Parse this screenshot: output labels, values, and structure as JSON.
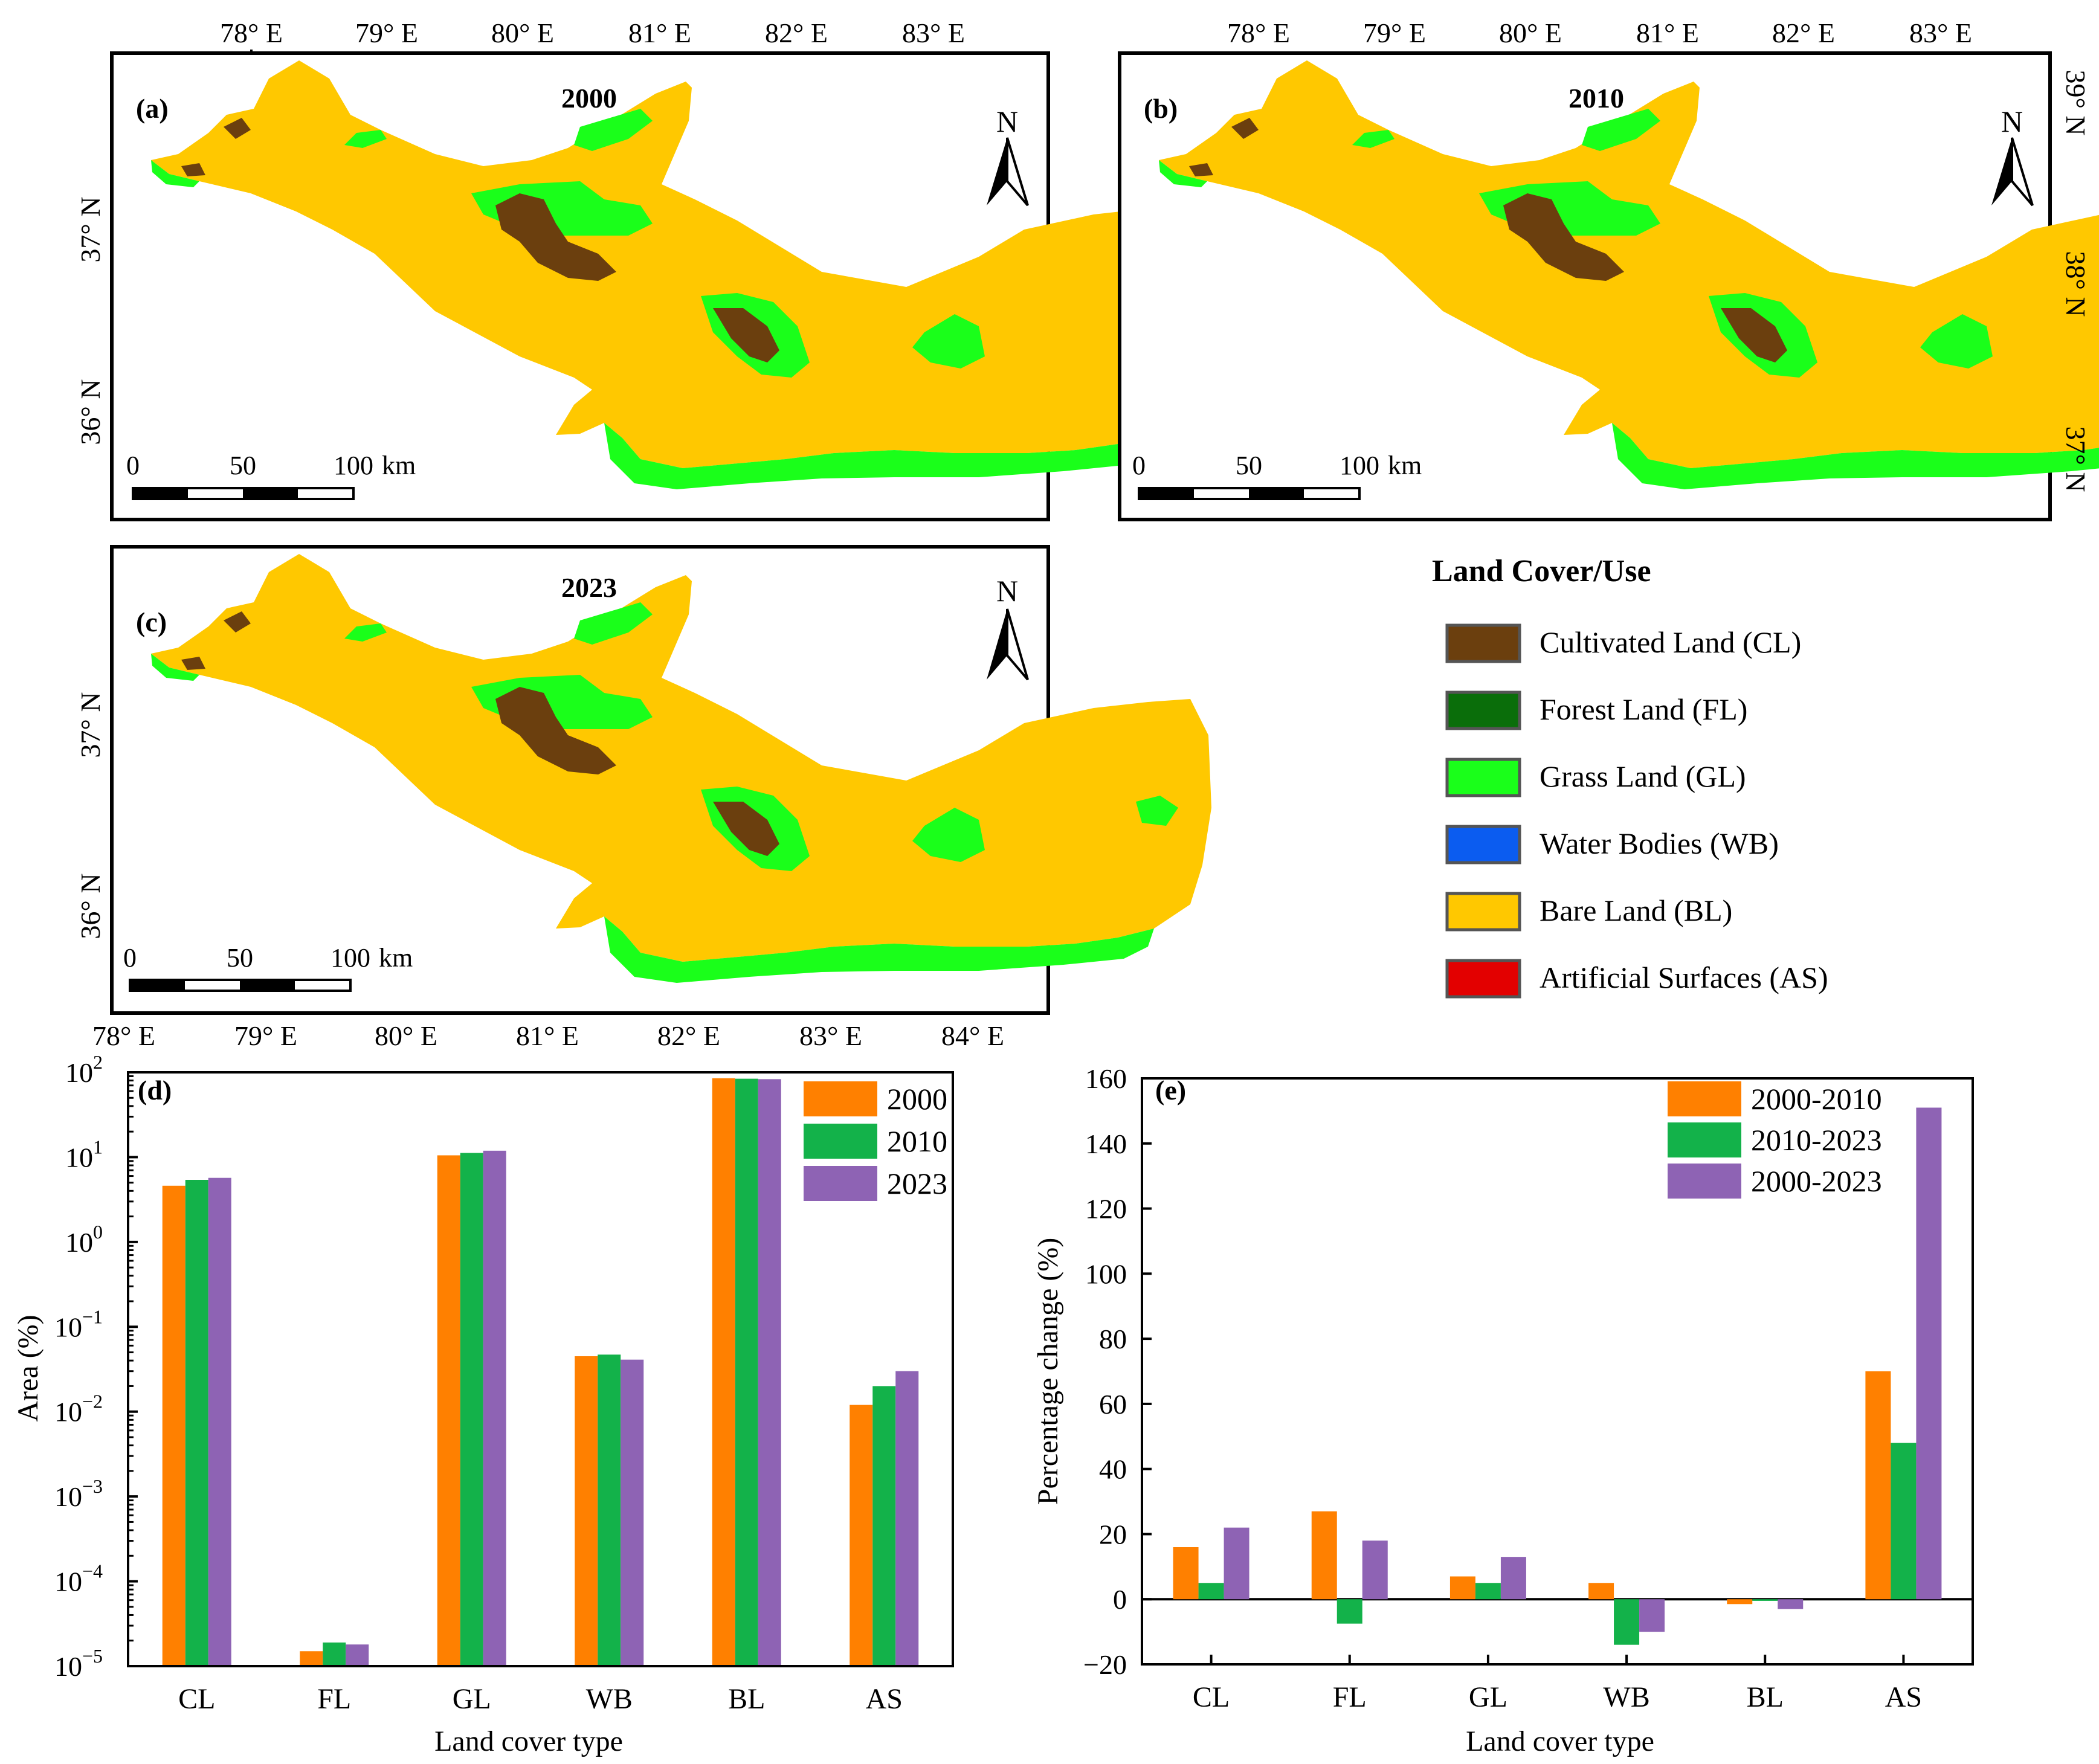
{
  "maps": [
    {
      "id": "a",
      "panel_label": "(a)",
      "year": "2000",
      "top_ticks": [
        "78° E",
        "79° E",
        "80° E",
        "81° E",
        "82° E",
        "83° E"
      ],
      "left_ticks": [
        "37° N",
        "36° N"
      ],
      "right_ticks": [],
      "bottom_ticks": [],
      "scale_labels": [
        "0",
        "50",
        "100",
        "km"
      ]
    },
    {
      "id": "b",
      "panel_label": "(b)",
      "year": "2010",
      "top_ticks": [
        "78° E",
        "79° E",
        "80° E",
        "81° E",
        "82° E",
        "83° E"
      ],
      "left_ticks": [],
      "right_ticks": [
        "39° N",
        "38° N",
        "37° N"
      ],
      "bottom_ticks": [],
      "scale_labels": [
        "0",
        "50",
        "100",
        "km"
      ]
    },
    {
      "id": "c",
      "panel_label": "(c)",
      "year": "2023",
      "top_ticks": [],
      "left_ticks": [
        "37° N",
        "36° N"
      ],
      "right_ticks": [],
      "bottom_ticks": [
        "78° E",
        "79° E",
        "80° E",
        "81° E",
        "82° E",
        "83° E",
        "84° E"
      ],
      "scale_labels": [
        "0",
        "50",
        "100",
        "km"
      ]
    }
  ],
  "north_arrow": "N",
  "legend": {
    "title": "Land Cover/Use",
    "items": [
      {
        "label": "Cultivated Land (CL)",
        "color": "#6b3f0e"
      },
      {
        "label": "Forest Land (FL)",
        "color": "#0a6e0a"
      },
      {
        "label": "Grass Land (GL)",
        "color": "#1aff1a"
      },
      {
        "label": "Water Bodies (WB)",
        "color": "#0b5cf0"
      },
      {
        "label": "Bare Land (BL)",
        "color": "#ffc800"
      },
      {
        "label": "Artificial Surfaces (AS)",
        "color": "#e30000"
      }
    ]
  },
  "chart_data": [
    {
      "type": "bar",
      "panel_label": "(d)",
      "scale": "log",
      "categories": [
        "CL",
        "FL",
        "GL",
        "WB",
        "BL",
        "AS"
      ],
      "series": [
        {
          "name": "2000",
          "color": "#ff8000",
          "values": [
            4.6,
            1.5e-05,
            10.5,
            0.045,
            85,
            0.012
          ]
        },
        {
          "name": "2010",
          "color": "#13b24a",
          "values": [
            5.4,
            1.9e-05,
            11.2,
            0.047,
            84,
            0.02
          ]
        },
        {
          "name": "2023",
          "color": "#8e63b4",
          "values": [
            5.7,
            1.8e-05,
            11.9,
            0.041,
            83,
            0.03
          ]
        }
      ],
      "xlabel": "Land cover type",
      "ylabel": "Area (%)",
      "ylim": [
        1e-05,
        100
      ],
      "ticks": [
        {
          "base": "10",
          "exp": "2"
        },
        {
          "base": "10",
          "exp": "1"
        },
        {
          "base": "10",
          "exp": "0"
        },
        {
          "base": "10",
          "exp": "−1"
        },
        {
          "base": "10",
          "exp": "−2"
        },
        {
          "base": "10",
          "exp": "−3"
        },
        {
          "base": "10",
          "exp": "−4"
        },
        {
          "base": "10",
          "exp": "−5"
        }
      ],
      "legend_position": "top-right"
    },
    {
      "type": "bar",
      "panel_label": "(e)",
      "scale": "linear",
      "categories": [
        "CL",
        "FL",
        "GL",
        "WB",
        "BL",
        "AS"
      ],
      "series": [
        {
          "name": "2000-2010",
          "color": "#ff8000",
          "values": [
            16,
            27,
            7,
            5,
            -1.5,
            70
          ]
        },
        {
          "name": "2010-2023",
          "color": "#13b24a",
          "values": [
            5,
            -7.5,
            5,
            -14,
            -0.5,
            48
          ]
        },
        {
          "name": "2000-2023",
          "color": "#8e63b4",
          "values": [
            22,
            18,
            13,
            -10,
            -3,
            151
          ]
        }
      ],
      "xlabel": "Land cover type",
      "ylabel": "Percentage change (%)",
      "ylim": [
        -20,
        160
      ],
      "ticks": [
        "160",
        "140",
        "120",
        "100",
        "80",
        "60",
        "40",
        "20",
        "0",
        "−20"
      ],
      "legend_position": "top-right"
    }
  ]
}
